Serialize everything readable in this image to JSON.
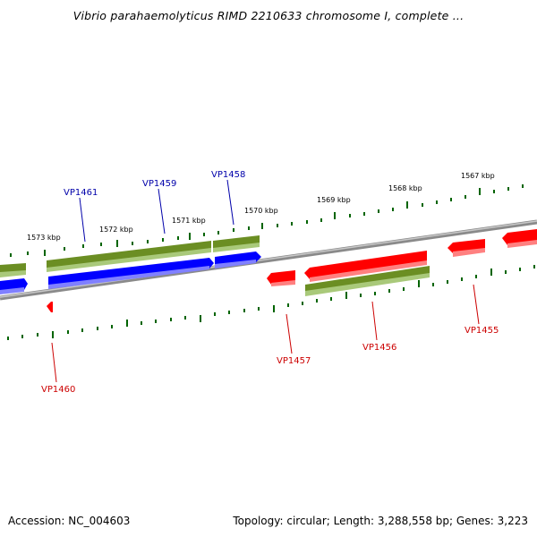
{
  "title": "Vibrio parahaemolyticus RIMD 2210633 chromosome I, complete ...",
  "footer": {
    "accession": "Accession: NC_004603",
    "summary": "Topology: circular; Length: 3,288,558 bp; Genes: 3,223"
  },
  "colors": {
    "forward_gene": "#0000ff",
    "reverse_gene": "#ff0000",
    "cds": "#6b8e23",
    "backbone": "#808080",
    "tick": "#006400"
  },
  "scale_labels": [
    "1573 kbp",
    "1572 kbp",
    "1571 kbp",
    "1570 kbp",
    "1569 kbp",
    "1568 kbp",
    "1567 kbp"
  ],
  "gene_labels": {
    "forward": [
      "VP1461",
      "VP1459",
      "VP1458"
    ],
    "reverse": [
      "VP1460",
      "VP1457",
      "VP1456",
      "VP1455"
    ]
  }
}
